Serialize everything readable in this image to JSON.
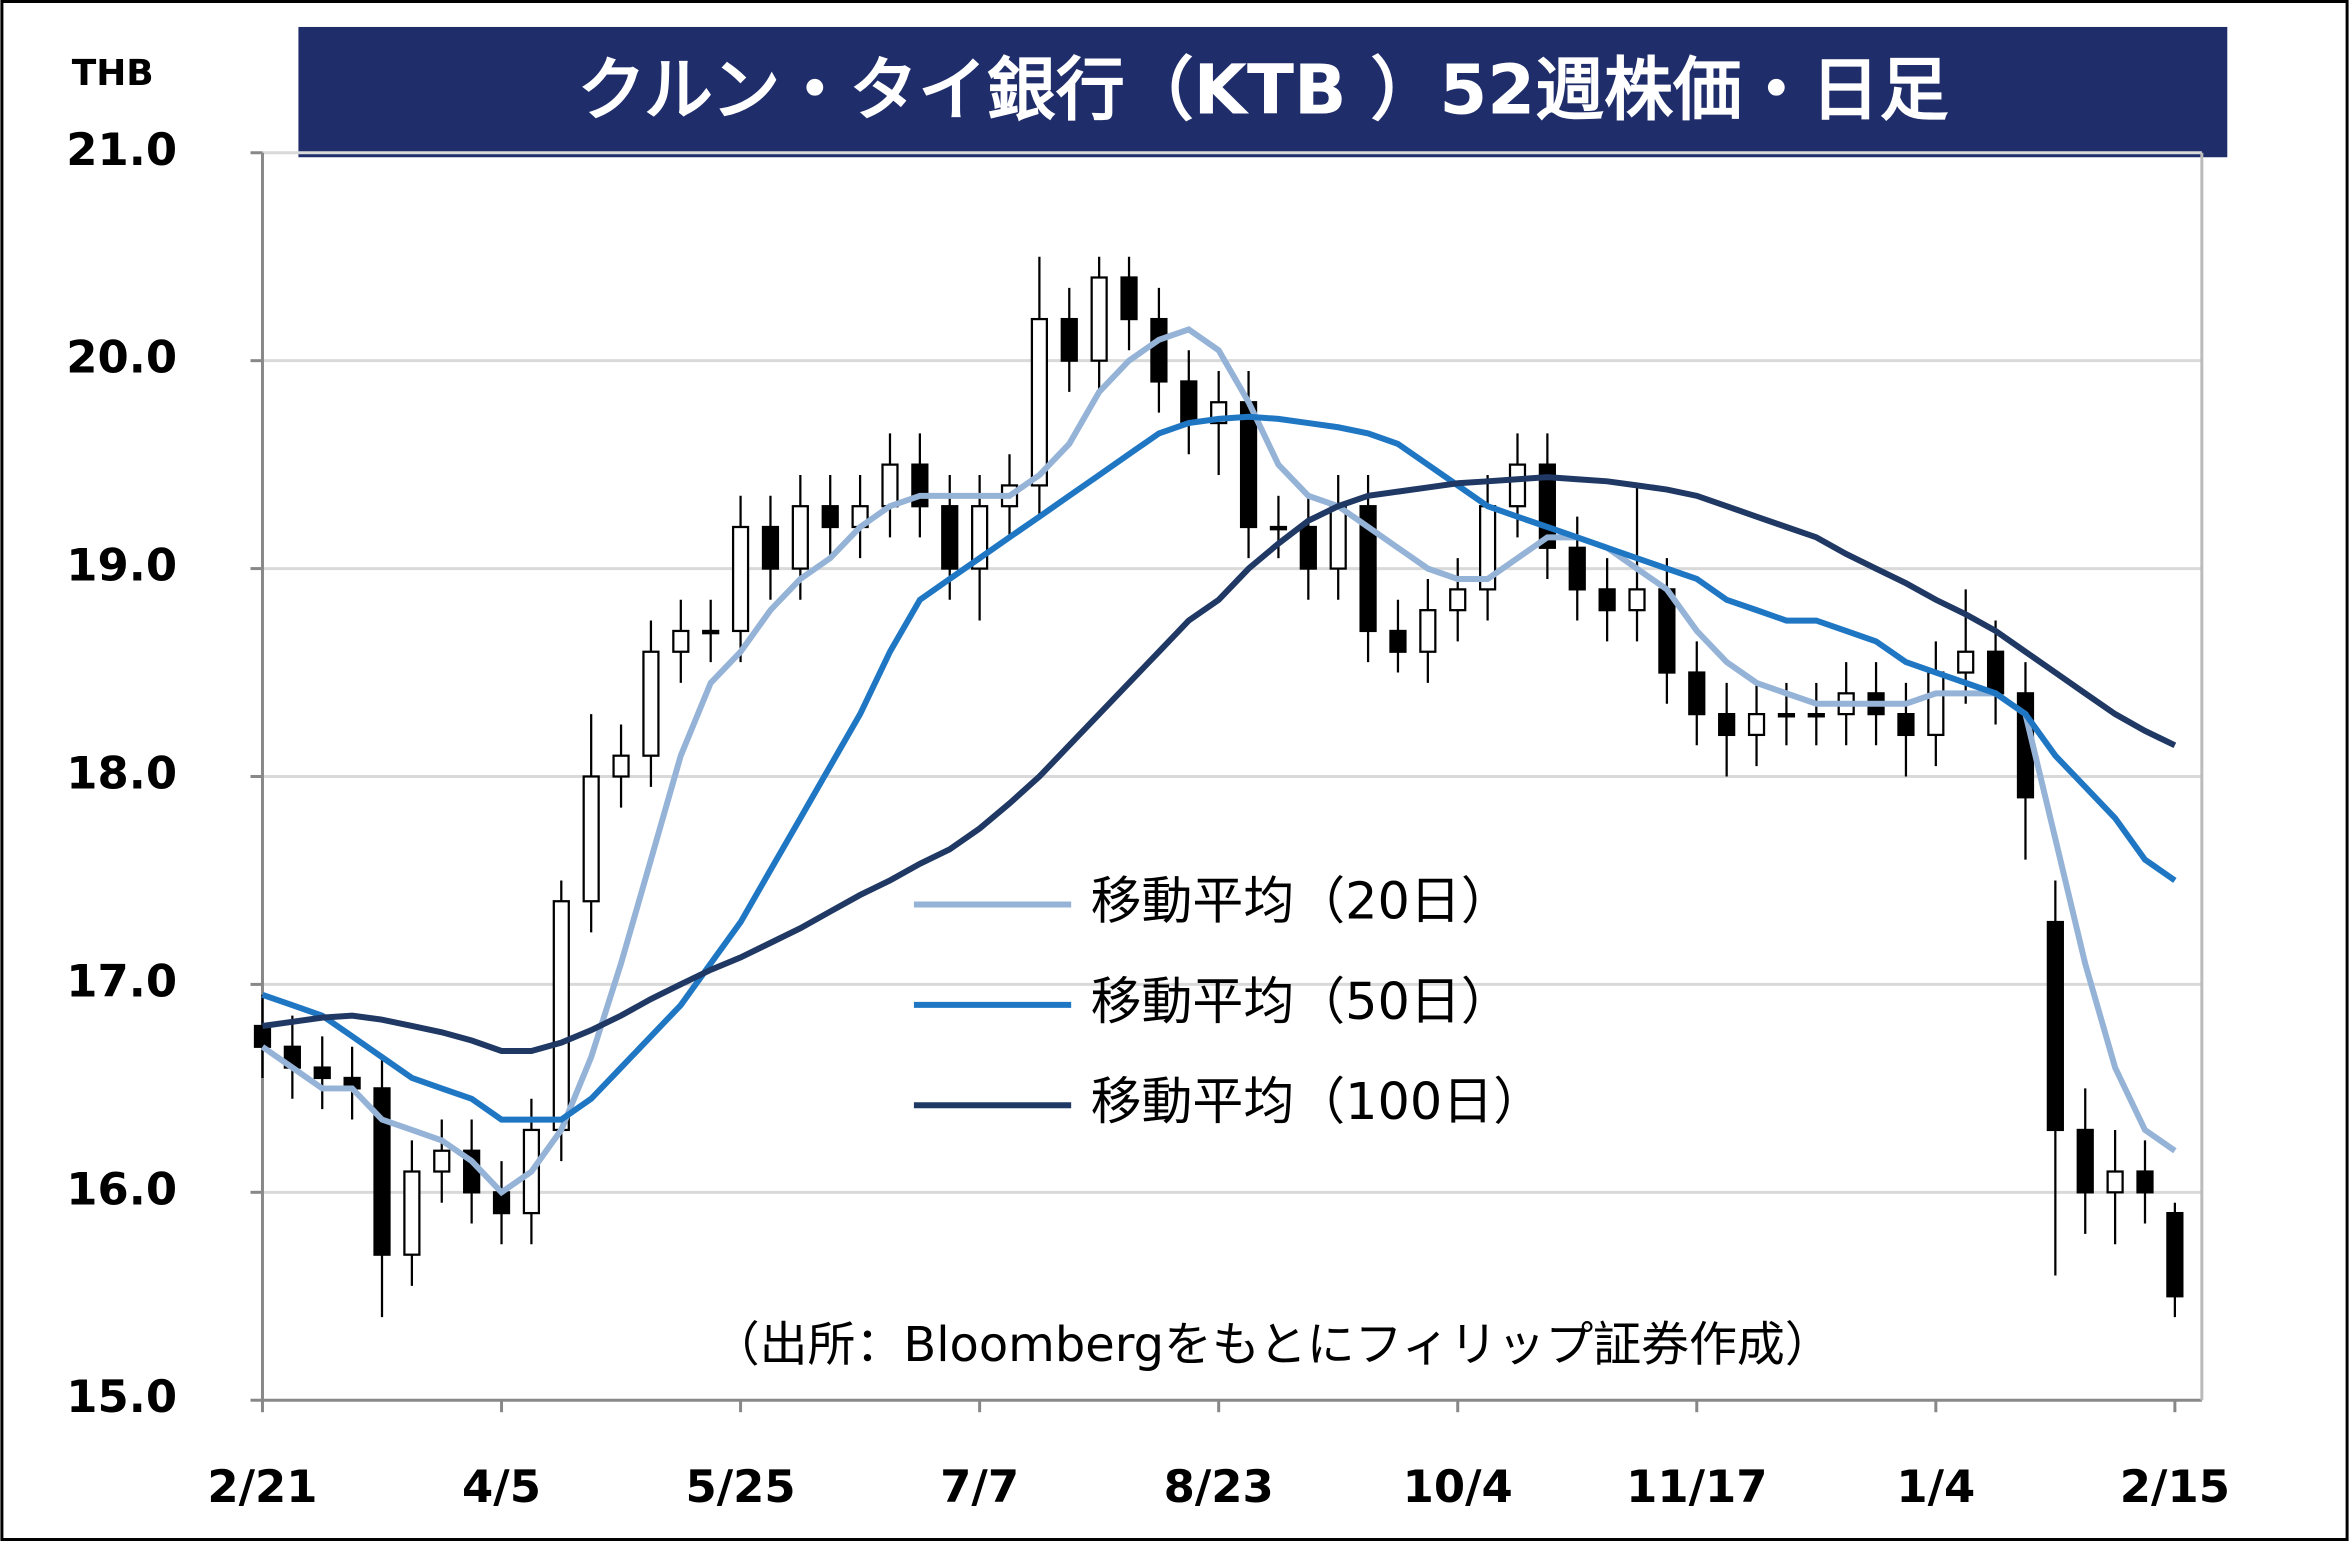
{
  "chart_data": {
    "type": "candlestick",
    "title": "クルン・タイ銀行（KTB ）52週株価・日足",
    "y_unit": "THB",
    "annotation": "（出所：Bloombergをもとにフィリップ証券作成）",
    "categories": [
      "2/21",
      null,
      null,
      null,
      null,
      null,
      null,
      null,
      "4/5",
      null,
      null,
      null,
      null,
      null,
      null,
      null,
      "5/25",
      null,
      null,
      null,
      null,
      null,
      null,
      null,
      "7/7",
      null,
      null,
      null,
      null,
      null,
      null,
      null,
      "8/23",
      null,
      null,
      null,
      null,
      null,
      null,
      null,
      "10/4",
      null,
      null,
      null,
      null,
      null,
      null,
      null,
      "11/17",
      null,
      null,
      null,
      null,
      null,
      null,
      null,
      "1/4",
      null,
      null,
      null,
      null,
      null,
      null,
      null,
      "2/15"
    ],
    "ohlc": {
      "open": [
        16.8,
        16.7,
        16.6,
        16.55,
        16.5,
        15.7,
        16.1,
        16.2,
        16.0,
        15.9,
        16.3,
        17.4,
        18.0,
        18.1,
        18.6,
        18.7,
        18.7,
        19.2,
        19.0,
        19.3,
        19.2,
        19.3,
        19.5,
        19.3,
        19.0,
        19.3,
        19.4,
        20.2,
        20.0,
        20.4,
        20.2,
        19.9,
        19.7,
        19.8,
        19.2,
        19.2,
        19.0,
        19.3,
        18.7,
        18.6,
        18.8,
        18.9,
        19.3,
        19.5,
        19.1,
        18.9,
        18.8,
        18.9,
        18.5,
        18.3,
        18.2,
        18.3,
        18.3,
        18.3,
        18.4,
        18.3,
        18.2,
        18.5,
        18.6,
        18.4,
        17.3,
        16.3,
        16.0,
        16.1,
        15.9
      ],
      "high": [
        16.95,
        16.85,
        16.75,
        16.7,
        16.65,
        16.25,
        16.35,
        16.35,
        16.15,
        16.45,
        17.5,
        18.3,
        18.25,
        18.75,
        18.85,
        18.85,
        19.35,
        19.35,
        19.45,
        19.45,
        19.45,
        19.65,
        19.65,
        19.45,
        19.45,
        19.55,
        20.5,
        20.35,
        20.5,
        20.5,
        20.35,
        20.05,
        19.95,
        19.95,
        19.35,
        19.35,
        19.45,
        19.45,
        18.85,
        18.95,
        19.05,
        19.45,
        19.65,
        19.65,
        19.25,
        19.05,
        19.4,
        19.05,
        18.65,
        18.45,
        18.45,
        18.45,
        18.45,
        18.55,
        18.55,
        18.45,
        18.65,
        18.9,
        18.75,
        18.55,
        17.5,
        16.5,
        16.3,
        16.25,
        15.95
      ],
      "low": [
        16.55,
        16.45,
        16.4,
        16.35,
        15.4,
        15.55,
        15.95,
        15.85,
        15.75,
        15.75,
        16.15,
        17.25,
        17.85,
        17.95,
        18.45,
        18.55,
        18.55,
        18.85,
        18.85,
        19.05,
        19.05,
        19.15,
        19.15,
        18.85,
        18.75,
        19.15,
        19.25,
        19.85,
        19.85,
        20.05,
        19.75,
        19.55,
        19.45,
        19.05,
        19.05,
        18.85,
        18.85,
        18.55,
        18.5,
        18.45,
        18.65,
        18.75,
        19.15,
        18.95,
        18.75,
        18.65,
        18.65,
        18.35,
        18.15,
        18.0,
        18.05,
        18.15,
        18.15,
        18.15,
        18.15,
        18.0,
        18.05,
        18.35,
        18.25,
        17.6,
        15.6,
        15.8,
        15.75,
        15.85,
        15.4
      ],
      "close": [
        16.7,
        16.6,
        16.55,
        16.5,
        15.7,
        16.1,
        16.2,
        16.0,
        15.9,
        16.3,
        17.4,
        18.0,
        18.1,
        18.6,
        18.7,
        18.7,
        19.2,
        19.0,
        19.3,
        19.2,
        19.3,
        19.5,
        19.3,
        19.0,
        19.3,
        19.4,
        20.2,
        20.0,
        20.4,
        20.2,
        19.9,
        19.7,
        19.8,
        19.2,
        19.2,
        19.0,
        19.3,
        18.7,
        18.6,
        18.8,
        18.9,
        19.3,
        19.5,
        19.1,
        18.9,
        18.8,
        18.9,
        18.5,
        18.3,
        18.2,
        18.3,
        18.3,
        18.3,
        18.4,
        18.3,
        18.2,
        18.5,
        18.6,
        18.4,
        17.9,
        16.3,
        16.0,
        16.1,
        16.0,
        15.5
      ]
    },
    "series": [
      {
        "name": "移動平均（20日）",
        "color": "#95b3d7",
        "values": [
          16.7,
          16.6,
          16.5,
          16.5,
          16.35,
          16.3,
          16.25,
          16.15,
          16.0,
          16.1,
          16.3,
          16.65,
          17.1,
          17.6,
          18.1,
          18.45,
          18.6,
          18.8,
          18.95,
          19.05,
          19.2,
          19.3,
          19.35,
          19.35,
          19.35,
          19.35,
          19.45,
          19.6,
          19.85,
          20.0,
          20.1,
          20.15,
          20.05,
          19.8,
          19.5,
          19.35,
          19.3,
          19.2,
          19.1,
          19.0,
          18.95,
          18.95,
          19.05,
          19.15,
          19.15,
          19.1,
          19.0,
          18.9,
          18.7,
          18.55,
          18.45,
          18.4,
          18.35,
          18.35,
          18.35,
          18.35,
          18.4,
          18.4,
          18.4,
          18.3,
          17.7,
          17.1,
          16.6,
          16.3,
          16.2
        ]
      },
      {
        "name": "移動平均（50日）",
        "color": "#1f77c4",
        "values": [
          16.95,
          16.9,
          16.85,
          16.75,
          16.65,
          16.55,
          16.5,
          16.45,
          16.35,
          16.35,
          16.35,
          16.45,
          16.6,
          16.75,
          16.9,
          17.1,
          17.3,
          17.55,
          17.8,
          18.05,
          18.3,
          18.6,
          18.85,
          18.95,
          19.05,
          19.15,
          19.25,
          19.35,
          19.45,
          19.55,
          19.65,
          19.7,
          19.72,
          19.73,
          19.72,
          19.7,
          19.68,
          19.65,
          19.6,
          19.5,
          19.4,
          19.3,
          19.25,
          19.2,
          19.15,
          19.1,
          19.05,
          19.0,
          18.95,
          18.85,
          18.8,
          18.75,
          18.75,
          18.7,
          18.65,
          18.55,
          18.5,
          18.45,
          18.4,
          18.3,
          18.1,
          17.95,
          17.8,
          17.6,
          17.5
        ]
      },
      {
        "name": "移動平均（100日）",
        "color": "#1f3864",
        "values": [
          16.8,
          16.82,
          16.84,
          16.85,
          16.83,
          16.8,
          16.77,
          16.73,
          16.68,
          16.68,
          16.72,
          16.78,
          16.85,
          16.93,
          17.0,
          17.07,
          17.13,
          17.2,
          17.27,
          17.35,
          17.43,
          17.5,
          17.58,
          17.65,
          17.75,
          17.87,
          18.0,
          18.15,
          18.3,
          18.45,
          18.6,
          18.75,
          18.85,
          19.0,
          19.12,
          19.23,
          19.3,
          19.35,
          19.37,
          19.39,
          19.41,
          19.42,
          19.43,
          19.44,
          19.43,
          19.42,
          19.4,
          19.38,
          19.35,
          19.3,
          19.25,
          19.2,
          19.15,
          19.07,
          19.0,
          18.93,
          18.85,
          18.78,
          18.7,
          18.6,
          18.5,
          18.4,
          18.3,
          18.22,
          18.15
        ]
      }
    ],
    "ylim": [
      15,
      21
    ],
    "yticks": [
      {
        "value": 15,
        "label": "15.0"
      },
      {
        "value": 16,
        "label": "16.0"
      },
      {
        "value": 17,
        "label": "17.0"
      },
      {
        "value": 18,
        "label": "18.0"
      },
      {
        "value": 19,
        "label": "19.0"
      },
      {
        "value": 20,
        "label": "20.0"
      },
      {
        "value": 21,
        "label": "21.0"
      }
    ],
    "grid": true
  }
}
